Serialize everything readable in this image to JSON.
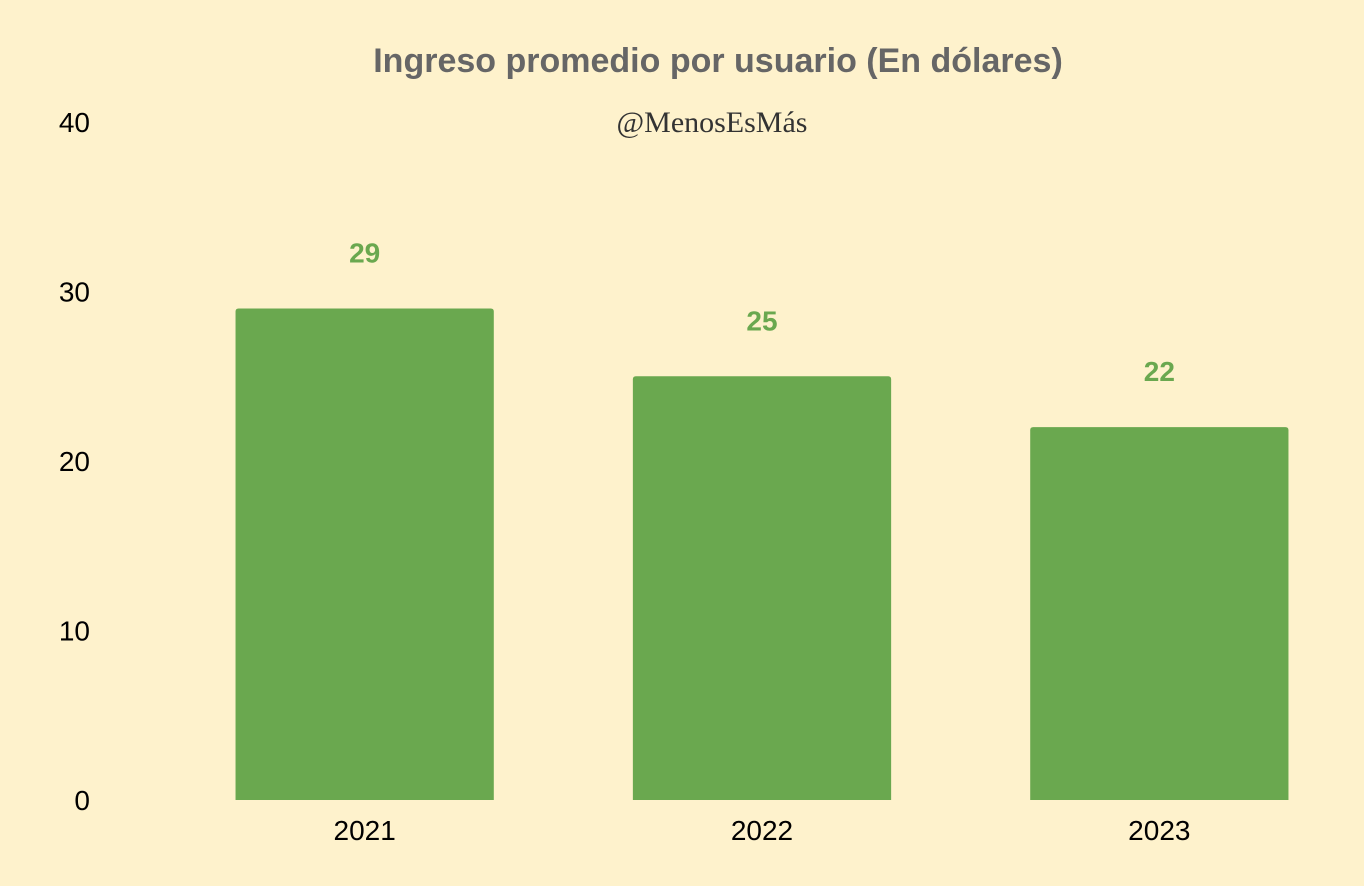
{
  "chart_data": {
    "type": "bar",
    "title": "Ingreso promedio por usuario (En dólares)",
    "subtitle": "@MenosEsMás",
    "categories": [
      "2021",
      "2022",
      "2023"
    ],
    "values": [
      29,
      25,
      22
    ],
    "data_labels": [
      "29",
      "25",
      "22"
    ],
    "y_ticks": [
      "0",
      "10",
      "20",
      "30",
      "40"
    ],
    "ylim": [
      0,
      40
    ],
    "grid": false,
    "legend": "none"
  },
  "colors": {
    "background": "#fef2cc",
    "bar": "#6aa84f",
    "data_label": "#6aa84f",
    "title": "#666666"
  }
}
